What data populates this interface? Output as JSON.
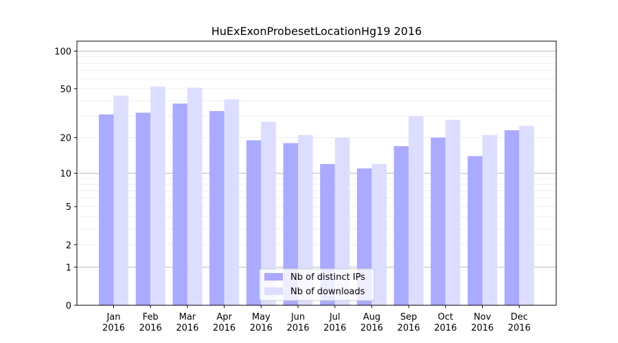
{
  "chart_data": {
    "type": "bar",
    "title": "HuExExonProbesetLocationHg19 2016",
    "xlabel": "",
    "ylabel": "",
    "y_scale": "symlog",
    "ylim": [
      0,
      120
    ],
    "y_ticks": [
      {
        "value": 0,
        "label": "0"
      },
      {
        "value": 1,
        "label": "1"
      },
      {
        "value": 2,
        "label": "2"
      },
      {
        "value": 5,
        "label": "5"
      },
      {
        "value": 10,
        "label": "10"
      },
      {
        "value": 20,
        "label": "20"
      },
      {
        "value": 50,
        "label": "50"
      },
      {
        "value": 100,
        "label": "100"
      }
    ],
    "categories": [
      [
        "Jan",
        "2016"
      ],
      [
        "Feb",
        "2016"
      ],
      [
        "Mar",
        "2016"
      ],
      [
        "Apr",
        "2016"
      ],
      [
        "May",
        "2016"
      ],
      [
        "Jun",
        "2016"
      ],
      [
        "Jul",
        "2016"
      ],
      [
        "Aug",
        "2016"
      ],
      [
        "Sep",
        "2016"
      ],
      [
        "Oct",
        "2016"
      ],
      [
        "Nov",
        "2016"
      ],
      [
        "Dec",
        "2016"
      ]
    ],
    "series": [
      {
        "name": "Nb of distinct IPs",
        "color": "#aaaaff",
        "values": [
          31,
          32,
          38,
          33,
          19,
          18,
          12,
          11,
          17,
          20,
          14,
          23
        ]
      },
      {
        "name": "Nb of downloads",
        "color": "#ddddff",
        "values": [
          44,
          52,
          51,
          41,
          27,
          21,
          20,
          12,
          30,
          28,
          21,
          25
        ]
      }
    ],
    "grid": true,
    "legend_position": "bottom-center"
  }
}
